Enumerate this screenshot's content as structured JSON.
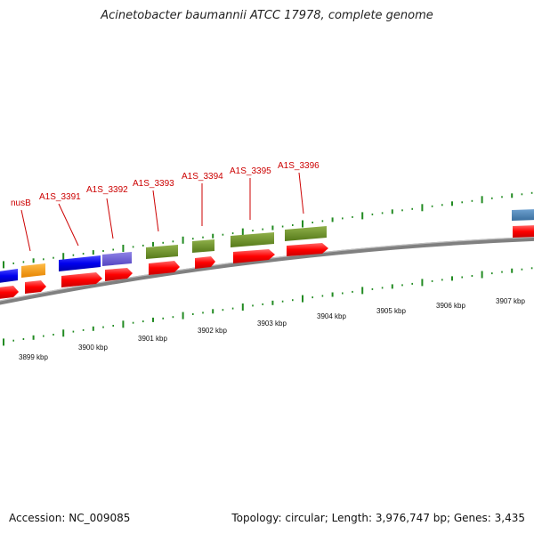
{
  "title": "Acinetobacter baumannii ATCC 17978, complete genome",
  "footer": {
    "accession": "Accession: NC_009085",
    "summary": "Topology: circular; Length: 3,976,747 bp; Genes: 3,435"
  },
  "gene_labels": [
    "nusB",
    "A1S_3391",
    "A1S_3392",
    "A1S_3393",
    "A1S_3394",
    "A1S_3395",
    "A1S_3396"
  ],
  "scale_labels": [
    "3899 kbp",
    "3900 kbp",
    "3901 kbp",
    "3902 kbp",
    "3903 kbp",
    "3904 kbp",
    "3905 kbp",
    "3906 kbp",
    "3907 kbp"
  ],
  "colors": {
    "label": "#cc0000",
    "cds_red": "#ff0000",
    "blue": "#0000ee",
    "purple": "#6f5fd6",
    "orange": "#ff9a00",
    "olive": "#6b8e23",
    "steel": "#4682b4",
    "tick": "#228b22",
    "backbone": "#808080"
  }
}
